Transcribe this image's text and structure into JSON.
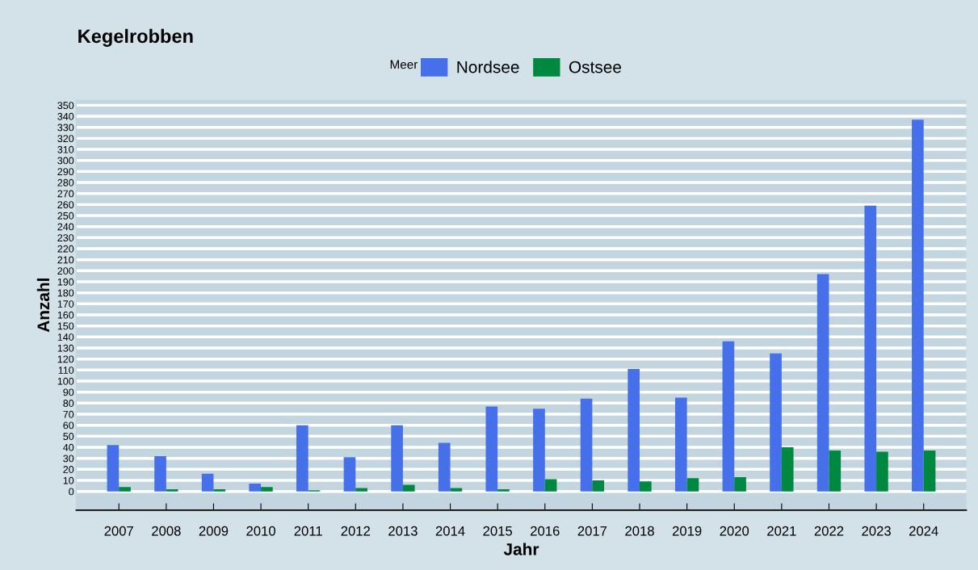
{
  "chart_data": {
    "type": "bar",
    "title": "Kegelrobben",
    "xlabel": "Jahr",
    "ylabel": "Anzahl",
    "legend_title": "Meer",
    "legend": "top",
    "categories": [
      "2007",
      "2008",
      "2009",
      "2010",
      "2011",
      "2012",
      "2013",
      "2014",
      "2015",
      "2016",
      "2017",
      "2018",
      "2019",
      "2020",
      "2021",
      "2022",
      "2023",
      "2024"
    ],
    "series": [
      {
        "name": "Nordsee",
        "color": "#4570ea",
        "values": [
          42,
          32,
          16,
          7,
          60,
          31,
          60,
          44,
          77,
          75,
          84,
          111,
          85,
          136,
          125,
          197,
          259,
          337
        ]
      },
      {
        "name": "Ostsee",
        "color": "#008740",
        "values": [
          4,
          2,
          2,
          4,
          1,
          3,
          6,
          3,
          2,
          11,
          10,
          9,
          12,
          13,
          40,
          37,
          36,
          37
        ]
      }
    ],
    "ylim": [
      -17,
      355
    ],
    "yticks": [
      0,
      10,
      20,
      30,
      40,
      50,
      60,
      70,
      80,
      90,
      100,
      110,
      120,
      130,
      140,
      150,
      160,
      170,
      180,
      190,
      200,
      210,
      220,
      230,
      240,
      250,
      260,
      270,
      280,
      290,
      300,
      310,
      320,
      330,
      340,
      350
    ],
    "grid": "y"
  }
}
